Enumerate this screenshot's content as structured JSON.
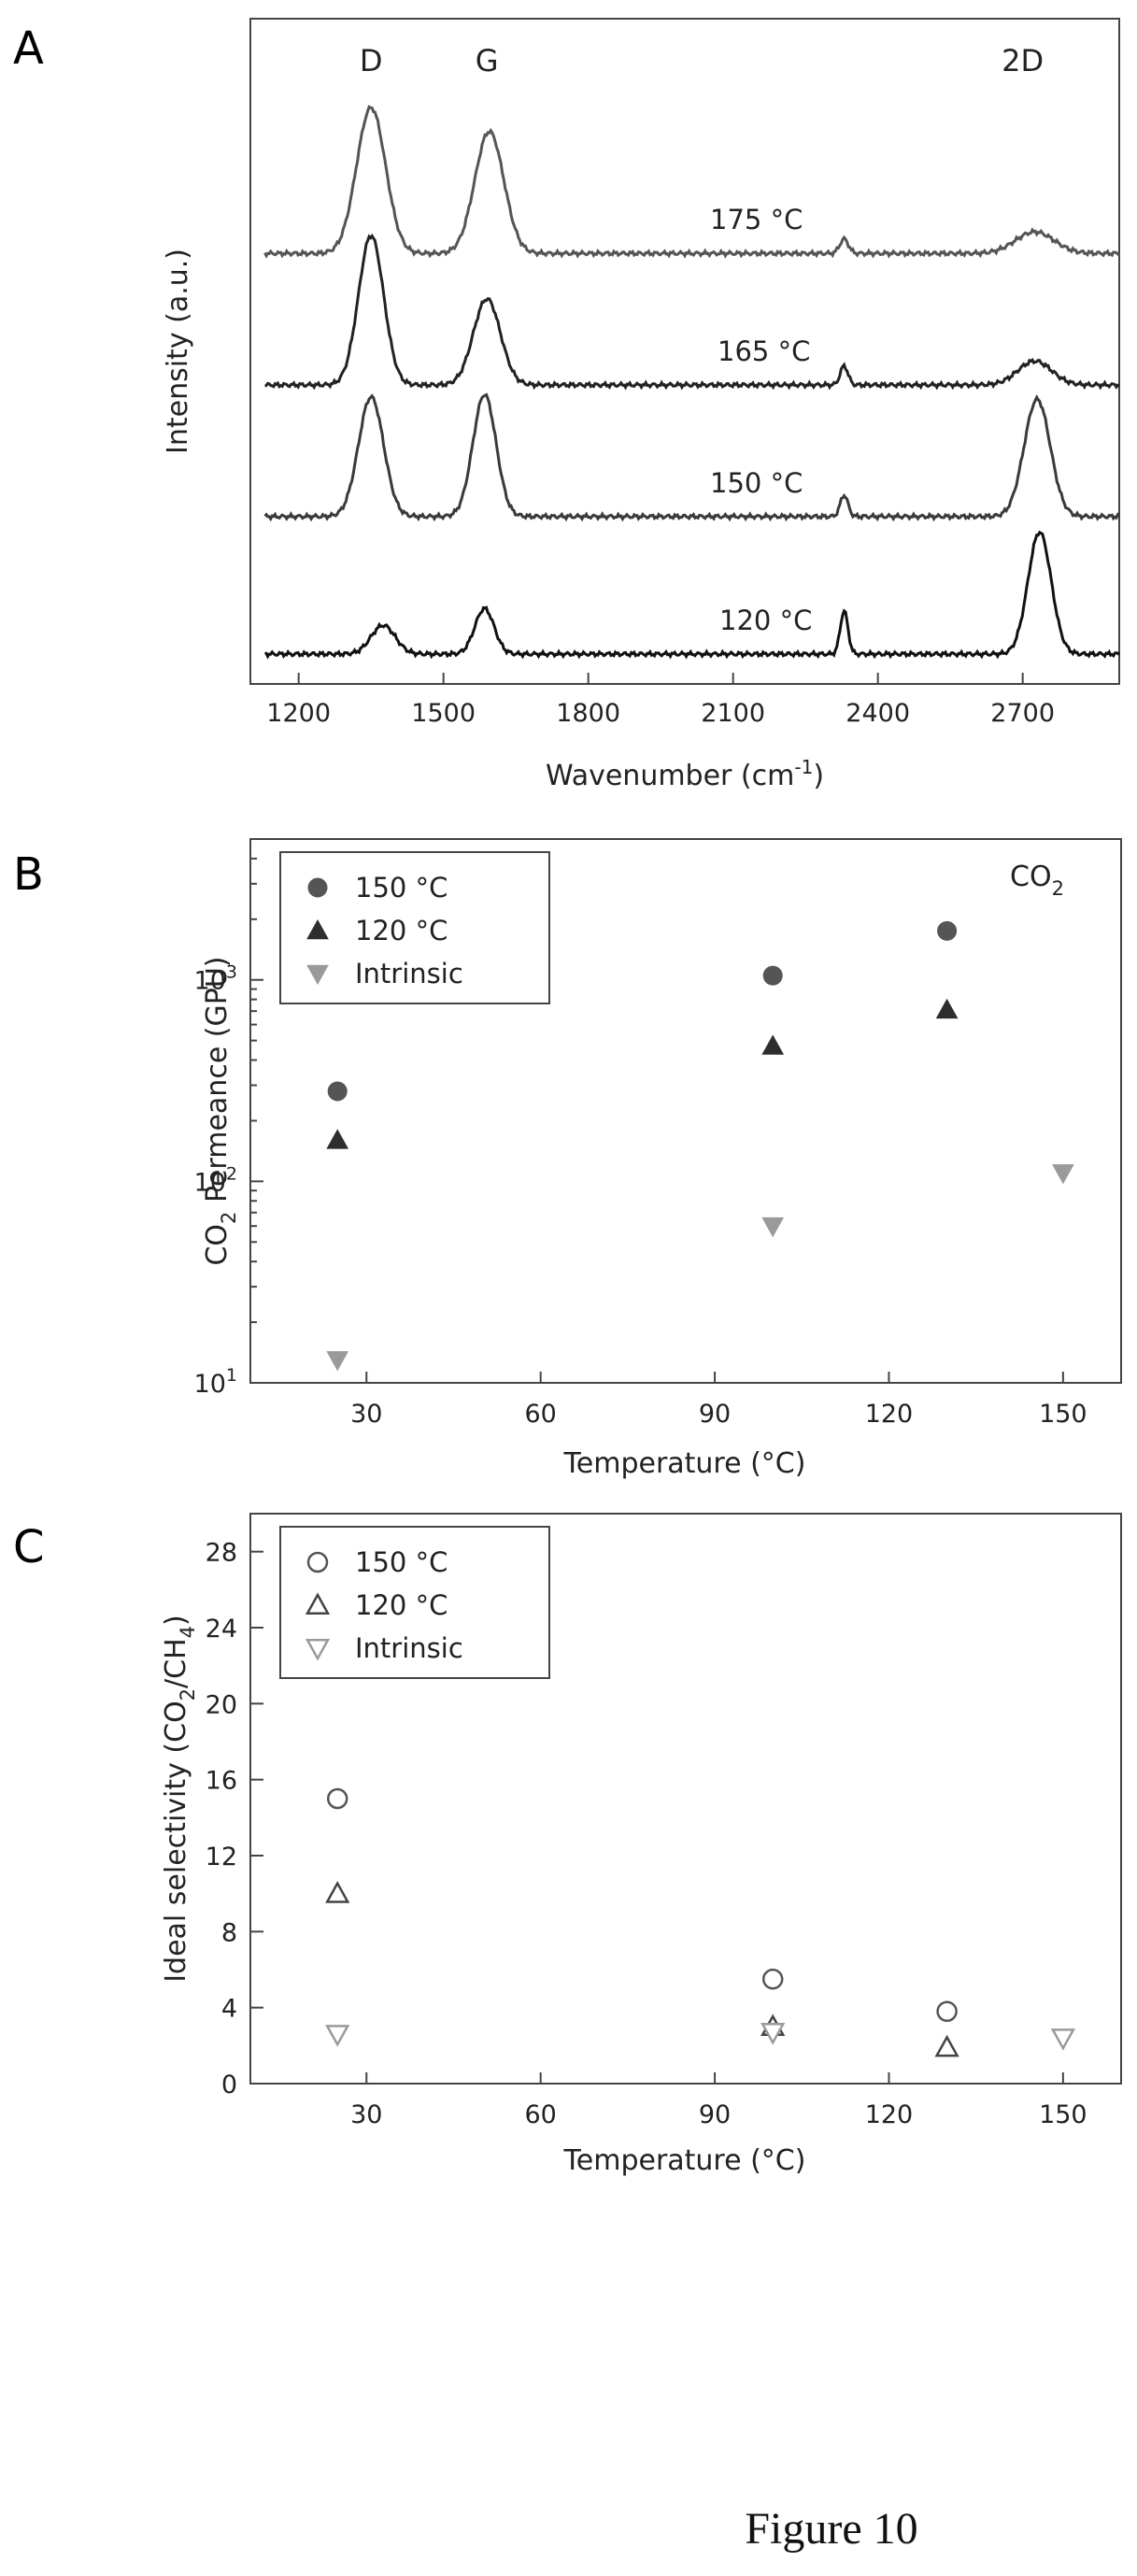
{
  "figure_caption": "Figure 10",
  "chart_data": [
    {
      "panel": "A",
      "type": "line",
      "xlabel": "Wavenumber (cm-1)",
      "ylabel": "Intensity (a.u.)",
      "xlim": [
        1100,
        2900
      ],
      "xticks": [
        "1200",
        "1500",
        "1800",
        "2100",
        "2400",
        "2700"
      ],
      "xtick_values": [
        1200,
        1500,
        1800,
        2100,
        2400,
        2700
      ],
      "peak_labels": [
        {
          "text": "D",
          "x": 1350
        },
        {
          "text": "G",
          "x": 1590
        },
        {
          "text": "2D",
          "x": 2700
        }
      ],
      "series": [
        {
          "name": "175 °C",
          "baseline": 3.35,
          "peaks": [
            {
              "x": 1350,
              "amp": 1.22,
              "w": 30
            },
            {
              "x": 1595,
              "amp": 1.02,
              "w": 30
            },
            {
              "x": 2330,
              "amp": 0.12,
              "w": 9
            },
            {
              "x": 2725,
              "amp": 0.18,
              "w": 40
            }
          ]
        },
        {
          "name": "165 °C",
          "baseline": 2.25,
          "peaks": [
            {
              "x": 1350,
              "amp": 1.25,
              "w": 26
            },
            {
              "x": 1590,
              "amp": 0.72,
              "w": 28
            },
            {
              "x": 2330,
              "amp": 0.16,
              "w": 8
            },
            {
              "x": 2725,
              "amp": 0.2,
              "w": 35
            }
          ]
        },
        {
          "name": "150 °C",
          "baseline": 1.15,
          "peaks": [
            {
              "x": 1350,
              "amp": 1.0,
              "w": 26
            },
            {
              "x": 1585,
              "amp": 1.02,
              "w": 24
            },
            {
              "x": 2330,
              "amp": 0.18,
              "w": 8
            },
            {
              "x": 2730,
              "amp": 0.98,
              "w": 27
            }
          ]
        },
        {
          "name": "120 °C",
          "baseline": 0.0,
          "peaks": [
            {
              "x": 1375,
              "amp": 0.24,
              "w": 25
            },
            {
              "x": 1585,
              "amp": 0.38,
              "w": 20
            },
            {
              "x": 2330,
              "amp": 0.36,
              "w": 8
            },
            {
              "x": 2735,
              "amp": 1.02,
              "w": 24
            }
          ]
        }
      ]
    },
    {
      "panel": "B",
      "type": "scatter",
      "xlabel": "Temperature (°C)",
      "ylabel": "CO2 Permeance (GPU)",
      "annotation": "CO2",
      "xlim": [
        10,
        160
      ],
      "xticks": [
        "30",
        "60",
        "90",
        "120",
        "150"
      ],
      "xtick_values": [
        30,
        60,
        90,
        120,
        150
      ],
      "ylog": true,
      "ylim": [
        10,
        5000
      ],
      "yticks": [
        {
          "base": "10",
          "exp": "1",
          "value": 10
        },
        {
          "base": "10",
          "exp": "2",
          "value": 100
        },
        {
          "base": "10",
          "exp": "3",
          "value": 1000
        }
      ],
      "legend_position": "top-left",
      "series": [
        {
          "name": "150 °C",
          "marker": "circle-filled",
          "color": "#555555",
          "x": [
            25,
            100,
            130
          ],
          "y": [
            280,
            1050,
            1750
          ]
        },
        {
          "name": "120 °C",
          "marker": "triangle-up-filled",
          "color": "#2e2e2e",
          "x": [
            25,
            100,
            130
          ],
          "y": [
            160,
            470,
            710
          ]
        },
        {
          "name": "Intrinsic",
          "marker": "triangle-down-filled",
          "color": "#9a9a9a",
          "x": [
            25,
            100,
            150
          ],
          "y": [
            13,
            60,
            110
          ]
        }
      ]
    },
    {
      "panel": "C",
      "type": "scatter",
      "xlabel": "Temperature (°C)",
      "ylabel": "Ideal selectivity (CO2/CH4)",
      "xlim": [
        10,
        160
      ],
      "xticks": [
        "30",
        "60",
        "90",
        "120",
        "150"
      ],
      "xtick_values": [
        30,
        60,
        90,
        120,
        150
      ],
      "ylim": [
        0,
        30
      ],
      "yticks": [
        "0",
        "4",
        "8",
        "12",
        "16",
        "20",
        "24",
        "28"
      ],
      "ytick_values": [
        0,
        4,
        8,
        12,
        16,
        20,
        24,
        28
      ],
      "legend_position": "top-left",
      "series": [
        {
          "name": "150 °C",
          "marker": "circle-open",
          "color": "#555555",
          "x": [
            25,
            100,
            130
          ],
          "y": [
            15,
            5.5,
            3.8
          ]
        },
        {
          "name": "120 °C",
          "marker": "triangle-up-open",
          "color": "#444444",
          "x": [
            25,
            100,
            130
          ],
          "y": [
            10,
            3,
            1.9
          ]
        },
        {
          "name": "Intrinsic",
          "marker": "triangle-down-open",
          "color": "#9a9a9a",
          "x": [
            25,
            100,
            150
          ],
          "y": [
            2.6,
            2.7,
            2.4
          ]
        }
      ]
    }
  ]
}
